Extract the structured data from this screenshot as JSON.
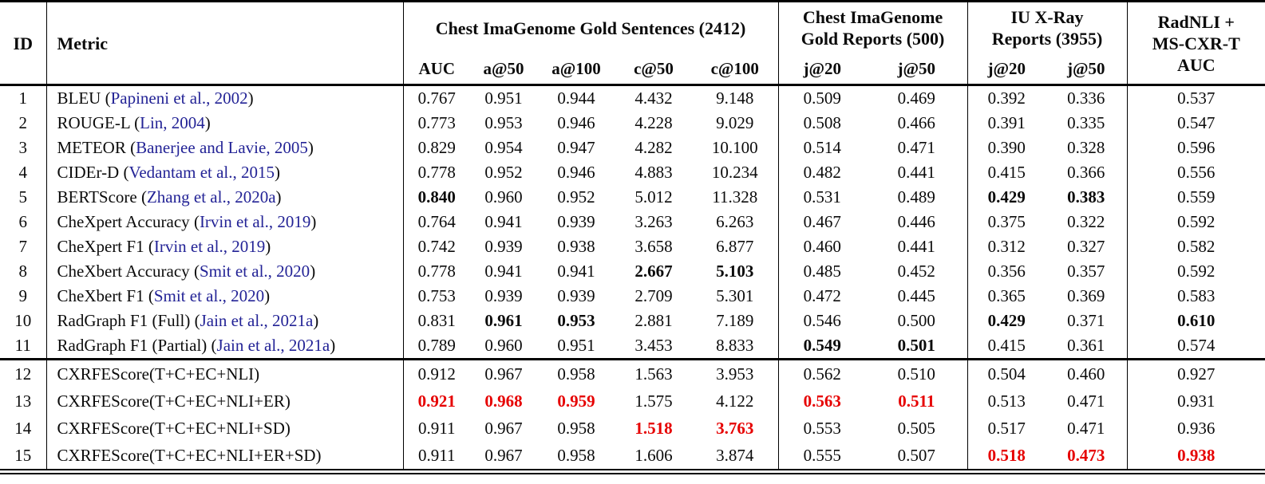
{
  "table": {
    "columns": {
      "id": "ID",
      "metric": "Metric",
      "groups": [
        {
          "title_lines": [
            "Chest ImaGenome Gold Sentences (2412)"
          ],
          "subcols": [
            "AUC",
            "a@50",
            "a@100",
            "c@50",
            "c@100"
          ]
        },
        {
          "title_lines": [
            "Chest ImaGenome",
            "Gold Reports (500)"
          ],
          "subcols": [
            "j@20",
            "j@50"
          ]
        },
        {
          "title_lines": [
            "IU X-Ray",
            "Reports (3955)"
          ],
          "subcols": [
            "j@20",
            "j@50"
          ]
        },
        {
          "title_lines": [
            "RadNLI +",
            "MS-CXR-T",
            "AUC"
          ],
          "subcols": []
        }
      ]
    },
    "colors": {
      "citation": "#232396",
      "highlight_red": "#e60000",
      "text": "#0b0b0b"
    },
    "style_legend": {
      "b": "bold-black-best-baseline",
      "r": "bold-red-best-overall",
      "": "normal"
    },
    "rows": [
      {
        "id": "1",
        "name": "BLEU",
        "cite": "Papineni et al., 2002",
        "values": [
          "0.767",
          "0.951",
          "0.944",
          "4.432",
          "9.148",
          "0.509",
          "0.469",
          "0.392",
          "0.336",
          "0.537"
        ],
        "styles": [
          "",
          "",
          "",
          "",
          "",
          "",
          "",
          "",
          "",
          ""
        ]
      },
      {
        "id": "2",
        "name": "ROUGE-L",
        "cite": "Lin, 2004",
        "values": [
          "0.773",
          "0.953",
          "0.946",
          "4.228",
          "9.029",
          "0.508",
          "0.466",
          "0.391",
          "0.335",
          "0.547"
        ],
        "styles": [
          "",
          "",
          "",
          "",
          "",
          "",
          "",
          "",
          "",
          ""
        ]
      },
      {
        "id": "3",
        "name": "METEOR",
        "cite": "Banerjee and Lavie, 2005",
        "values": [
          "0.829",
          "0.954",
          "0.947",
          "4.282",
          "10.100",
          "0.514",
          "0.471",
          "0.390",
          "0.328",
          "0.596"
        ],
        "styles": [
          "",
          "",
          "",
          "",
          "",
          "",
          "",
          "",
          "",
          ""
        ]
      },
      {
        "id": "4",
        "name": "CIDEr-D",
        "cite": "Vedantam et al., 2015",
        "values": [
          "0.778",
          "0.952",
          "0.946",
          "4.883",
          "10.234",
          "0.482",
          "0.441",
          "0.415",
          "0.366",
          "0.556"
        ],
        "styles": [
          "",
          "",
          "",
          "",
          "",
          "",
          "",
          "",
          "",
          ""
        ]
      },
      {
        "id": "5",
        "name": "BERTScore",
        "cite": "Zhang et al., 2020a",
        "values": [
          "0.840",
          "0.960",
          "0.952",
          "5.012",
          "11.328",
          "0.531",
          "0.489",
          "0.429",
          "0.383",
          "0.559"
        ],
        "styles": [
          "b",
          "",
          "",
          "",
          "",
          "",
          "",
          "b",
          "b",
          ""
        ]
      },
      {
        "id": "6",
        "name": "CheXpert Accuracy",
        "cite": "Irvin et al., 2019",
        "values": [
          "0.764",
          "0.941",
          "0.939",
          "3.263",
          "6.263",
          "0.467",
          "0.446",
          "0.375",
          "0.322",
          "0.592"
        ],
        "styles": [
          "",
          "",
          "",
          "",
          "",
          "",
          "",
          "",
          "",
          ""
        ]
      },
      {
        "id": "7",
        "name": "CheXpert F1",
        "cite": "Irvin et al., 2019",
        "values": [
          "0.742",
          "0.939",
          "0.938",
          "3.658",
          "6.877",
          "0.460",
          "0.441",
          "0.312",
          "0.327",
          "0.582"
        ],
        "styles": [
          "",
          "",
          "",
          "",
          "",
          "",
          "",
          "",
          "",
          ""
        ]
      },
      {
        "id": "8",
        "name": "CheXbert Accuracy",
        "cite": "Smit et al., 2020",
        "values": [
          "0.778",
          "0.941",
          "0.941",
          "2.667",
          "5.103",
          "0.485",
          "0.452",
          "0.356",
          "0.357",
          "0.592"
        ],
        "styles": [
          "",
          "",
          "",
          "b",
          "b",
          "",
          "",
          "",
          "",
          ""
        ]
      },
      {
        "id": "9",
        "name": "CheXbert F1",
        "cite": "Smit et al., 2020",
        "values": [
          "0.753",
          "0.939",
          "0.939",
          "2.709",
          "5.301",
          "0.472",
          "0.445",
          "0.365",
          "0.369",
          "0.583"
        ],
        "styles": [
          "",
          "",
          "",
          "",
          "",
          "",
          "",
          "",
          "",
          ""
        ]
      },
      {
        "id": "10",
        "name": "RadGraph F1 (Full)",
        "cite": "Jain et al., 2021a",
        "values": [
          "0.831",
          "0.961",
          "0.953",
          "2.881",
          "7.189",
          "0.546",
          "0.500",
          "0.429",
          "0.371",
          "0.610"
        ],
        "styles": [
          "",
          "b",
          "b",
          "",
          "",
          "",
          "",
          "b",
          "",
          "b"
        ]
      },
      {
        "id": "11",
        "name": "RadGraph F1 (Partial)",
        "cite": "Jain et al., 2021a",
        "values": [
          "0.789",
          "0.960",
          "0.951",
          "3.453",
          "8.833",
          "0.549",
          "0.501",
          "0.415",
          "0.361",
          "0.574"
        ],
        "styles": [
          "",
          "",
          "",
          "",
          "",
          "b",
          "b",
          "",
          "",
          ""
        ]
      },
      {
        "id": "12",
        "name": "CXRFEScore(T+C+EC+NLI)",
        "cite": null,
        "values": [
          "0.912",
          "0.967",
          "0.958",
          "1.563",
          "3.953",
          "0.562",
          "0.510",
          "0.504",
          "0.460",
          "0.927"
        ],
        "styles": [
          "",
          "",
          "",
          "",
          "",
          "",
          "",
          "",
          "",
          ""
        ]
      },
      {
        "id": "13",
        "name": "CXRFEScore(T+C+EC+NLI+ER)",
        "cite": null,
        "values": [
          "0.921",
          "0.968",
          "0.959",
          "1.575",
          "4.122",
          "0.563",
          "0.511",
          "0.513",
          "0.471",
          "0.931"
        ],
        "styles": [
          "r",
          "r",
          "r",
          "",
          "",
          "r",
          "r",
          "",
          "",
          ""
        ]
      },
      {
        "id": "14",
        "name": "CXRFEScore(T+C+EC+NLI+SD)",
        "cite": null,
        "values": [
          "0.911",
          "0.967",
          "0.958",
          "1.518",
          "3.763",
          "0.553",
          "0.505",
          "0.517",
          "0.471",
          "0.936"
        ],
        "styles": [
          "",
          "",
          "",
          "r",
          "r",
          "",
          "",
          "",
          "",
          ""
        ]
      },
      {
        "id": "15",
        "name": "CXRFEScore(T+C+EC+NLI+ER+SD)",
        "cite": null,
        "values": [
          "0.911",
          "0.967",
          "0.958",
          "1.606",
          "3.874",
          "0.555",
          "0.507",
          "0.518",
          "0.473",
          "0.938"
        ],
        "styles": [
          "",
          "",
          "",
          "",
          "",
          "",
          "",
          "r",
          "r",
          "r"
        ]
      }
    ]
  }
}
